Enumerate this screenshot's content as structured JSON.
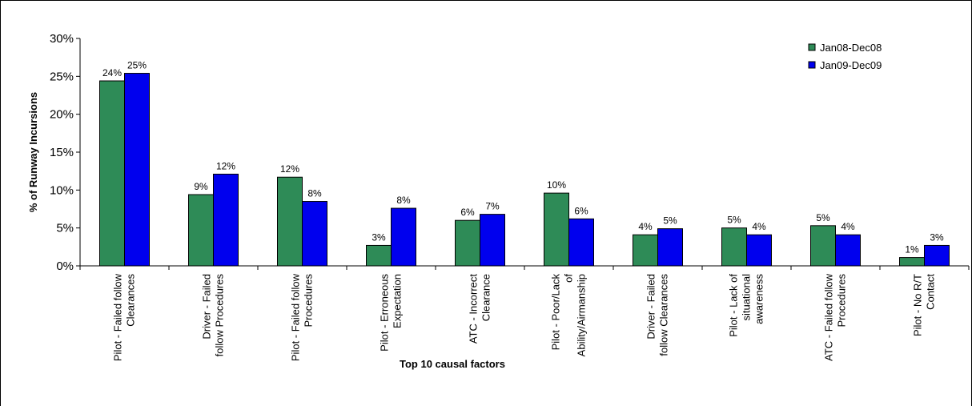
{
  "chart_data": {
    "type": "bar",
    "xlabel": "Top 10 causal factors",
    "ylabel": "% of Runway Incursions",
    "ylim": [
      0,
      30
    ],
    "yticks": [
      0,
      5,
      10,
      15,
      20,
      25,
      30
    ],
    "ytick_labels": [
      "0%",
      "5%",
      "10%",
      "15%",
      "20%",
      "25%",
      "30%"
    ],
    "categories": [
      [
        "Pilot - Failed follow",
        "Clearances"
      ],
      [
        "Driver - Failed",
        "follow Procedures"
      ],
      [
        "Pilot - Failed follow",
        "Procedures"
      ],
      [
        "Pilot - Erroneous",
        "Expectation"
      ],
      [
        "ATC - Incorrect",
        "Clearance"
      ],
      [
        "Pilot - Poor/Lack",
        "of",
        "Ability/Airmanship"
      ],
      [
        "Driver - Failed",
        "follow Clearances"
      ],
      [
        "Pilot - Lack of",
        "situational",
        "awareness"
      ],
      [
        "ATC - Failed follow",
        "Procedures"
      ],
      [
        "Pilot - No R/T",
        "Contact"
      ]
    ],
    "series": [
      {
        "name": "Jan08-Dec08",
        "color": "#2E8B57",
        "values": [
          24.4,
          9.4,
          11.7,
          2.7,
          6.0,
          9.6,
          4.1,
          5.0,
          5.3,
          1.1
        ],
        "labels": [
          "24%",
          "9%",
          "12%",
          "3%",
          "6%",
          "10%",
          "4%",
          "5%",
          "5%",
          "1%"
        ]
      },
      {
        "name": "Jan09-Dec09",
        "color": "#0000EE",
        "values": [
          25.4,
          12.1,
          8.5,
          7.6,
          6.8,
          6.2,
          4.9,
          4.1,
          4.1,
          2.7
        ],
        "labels": [
          "25%",
          "12%",
          "8%",
          "8%",
          "7%",
          "6%",
          "5%",
          "4%",
          "4%",
          "3%"
        ]
      }
    ],
    "legend_position": "top-right",
    "grid": false
  }
}
